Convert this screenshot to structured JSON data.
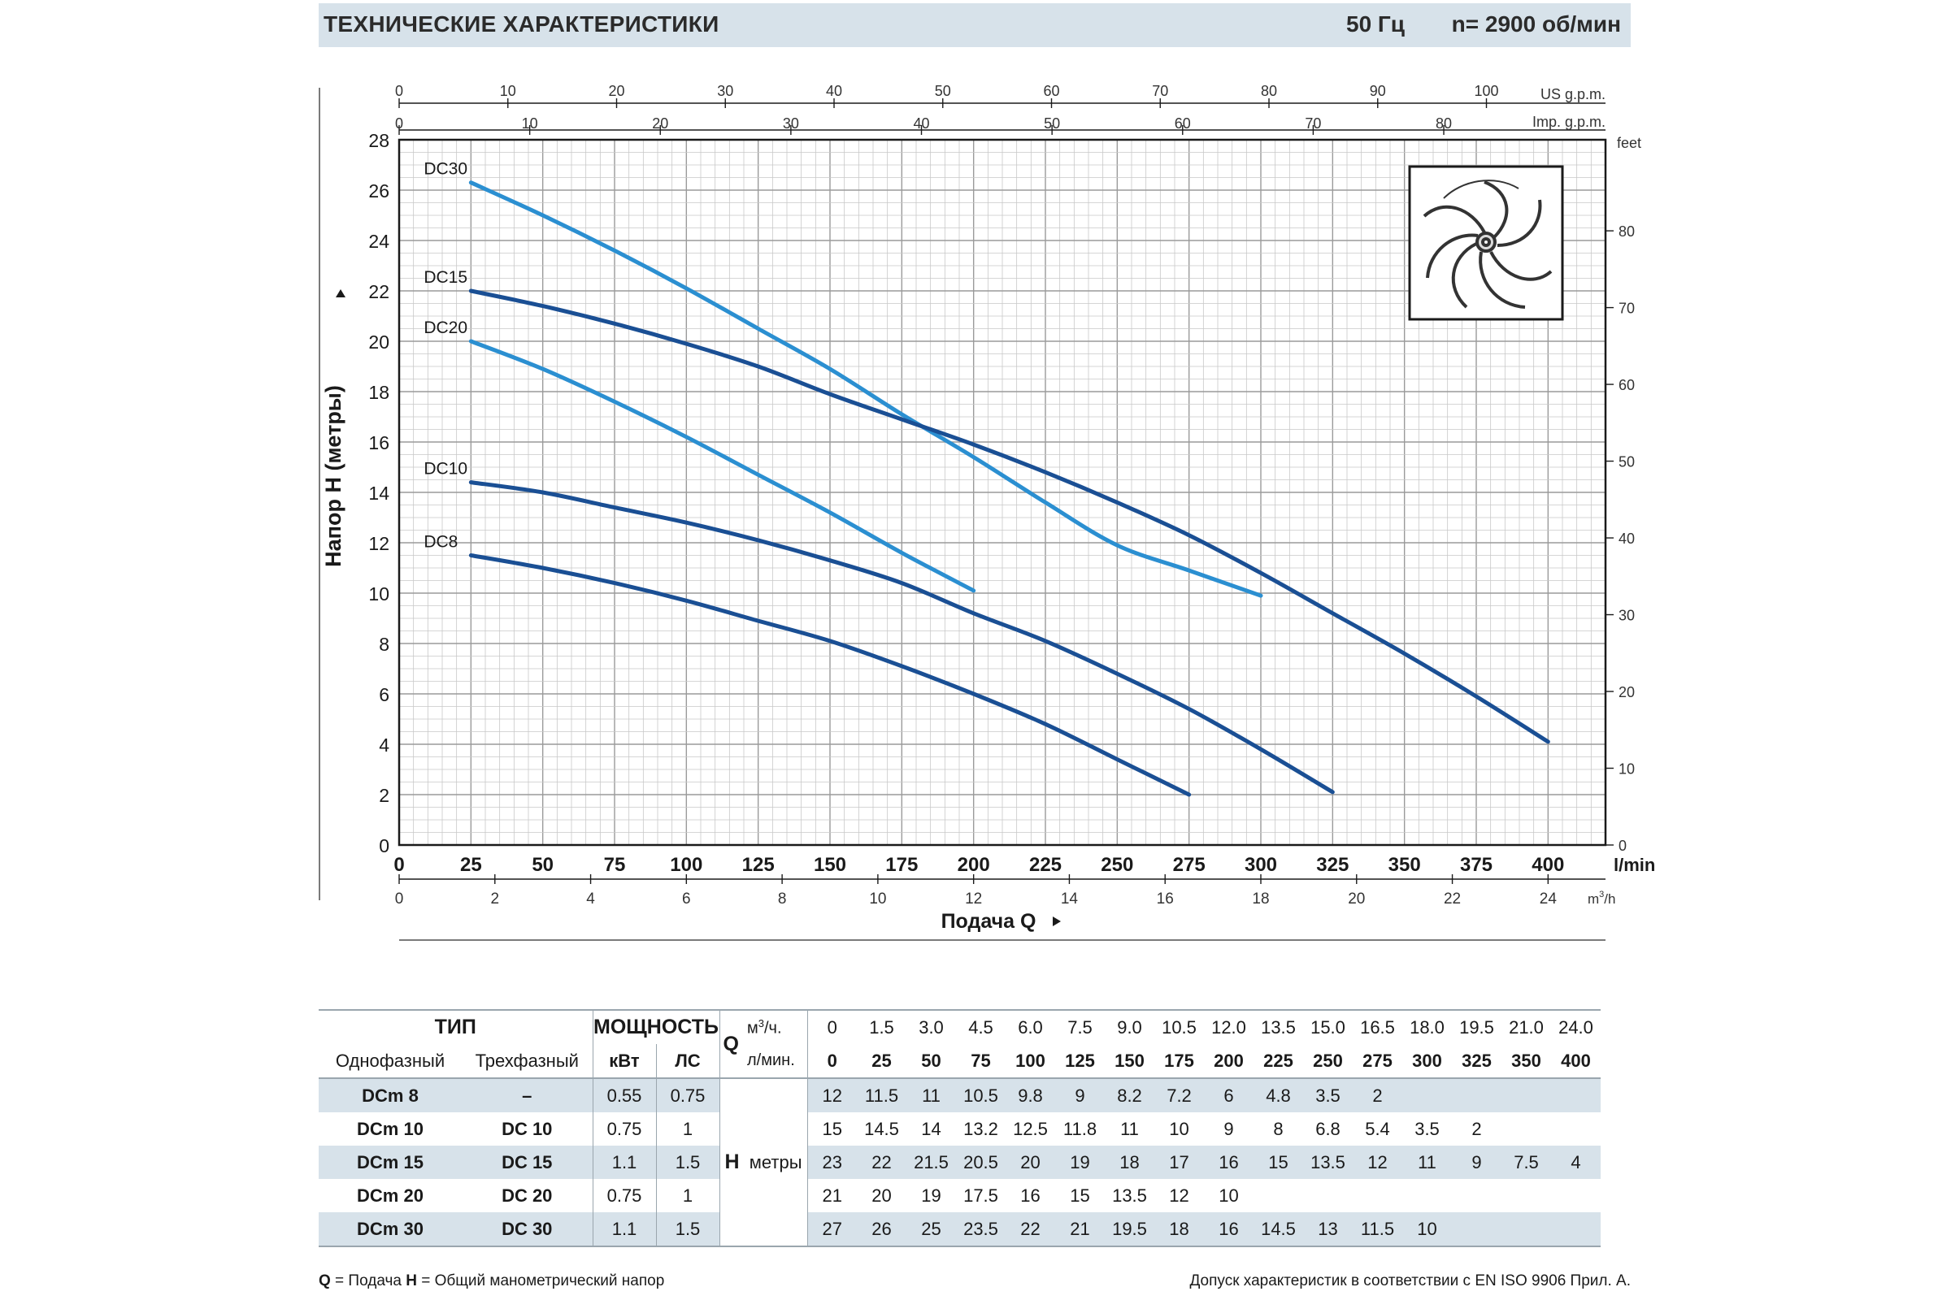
{
  "header": {
    "title": "ТЕХНИЧЕСКИЕ ХАРАКТЕРИСТИКИ",
    "frequency": "50 Гц",
    "speed": "n= 2900  об/мин"
  },
  "chart_data": {
    "type": "line",
    "x_label": "Подача Q",
    "y_label": "Напор H (метры)",
    "x_unit": "l/min",
    "xlim": [
      0,
      420
    ],
    "ylim": [
      0,
      28
    ],
    "x_ticks": [
      0,
      25,
      50,
      75,
      100,
      125,
      150,
      175,
      200,
      225,
      250,
      275,
      300,
      325,
      350,
      375,
      400
    ],
    "y_ticks": [
      0,
      2,
      4,
      6,
      8,
      10,
      12,
      14,
      16,
      18,
      20,
      22,
      24,
      26,
      28
    ],
    "grid": true,
    "secondary_axes": {
      "us_gpm": {
        "label": "US g.p.m.",
        "ticks": [
          0,
          10,
          20,
          30,
          40,
          50,
          60,
          70,
          80,
          90,
          100
        ]
      },
      "imp_gpm": {
        "label": "Imp. g.p.m.",
        "ticks": [
          0,
          10,
          20,
          30,
          40,
          50,
          60,
          70,
          80
        ]
      },
      "feet": {
        "label": "feet",
        "ticks": [
          0,
          10,
          20,
          30,
          40,
          50,
          60,
          70,
          80
        ]
      },
      "m3h": {
        "label": "m³/h",
        "ticks": [
          0,
          2,
          4,
          6,
          8,
          10,
          12,
          14,
          16,
          18,
          20,
          22,
          24
        ]
      }
    },
    "series": [
      {
        "name": "DC30",
        "color": "#2b8fd1",
        "x": [
          25,
          50,
          75,
          100,
          125,
          150,
          175,
          200,
          225,
          250,
          275,
          300
        ],
        "y": [
          26.3,
          25,
          23.6,
          22.1,
          20.5,
          18.9,
          17.1,
          15.4,
          13.6,
          11.9,
          10.9,
          9.9
        ]
      },
      {
        "name": "DC15",
        "color": "#1a4f94",
        "x": [
          25,
          50,
          75,
          100,
          125,
          150,
          175,
          200,
          225,
          250,
          275,
          300,
          325,
          350,
          375,
          400
        ],
        "y": [
          22,
          21.4,
          20.7,
          19.9,
          19,
          17.9,
          16.9,
          15.9,
          14.8,
          13.6,
          12.3,
          10.8,
          9.2,
          7.6,
          5.9,
          4.1
        ]
      },
      {
        "name": "DC20",
        "color": "#2b8fd1",
        "x": [
          25,
          50,
          75,
          100,
          125,
          150,
          175,
          200
        ],
        "y": [
          20,
          18.9,
          17.6,
          16.2,
          14.7,
          13.2,
          11.6,
          10.1
        ]
      },
      {
        "name": "DC10",
        "color": "#1a4f94",
        "x": [
          25,
          50,
          75,
          100,
          125,
          150,
          175,
          200,
          225,
          250,
          275,
          300,
          325
        ],
        "y": [
          14.4,
          14,
          13.4,
          12.8,
          12.1,
          11.3,
          10.4,
          9.2,
          8.1,
          6.8,
          5.4,
          3.8,
          2.1
        ]
      },
      {
        "name": "DC8",
        "color": "#1a4f94",
        "x": [
          25,
          50,
          75,
          100,
          125,
          150,
          175,
          200,
          225,
          250,
          275
        ],
        "y": [
          11.5,
          11,
          10.4,
          9.7,
          8.9,
          8.1,
          7.1,
          6,
          4.8,
          3.4,
          2
        ]
      }
    ]
  },
  "table": {
    "col_type": "ТИП",
    "col_power": "МОЩНОСТЬ",
    "q_symbol": "Q",
    "q_unit_m3": "м³/ч.",
    "q_unit_lmin": "л/мин.",
    "single_phase": "Однофазный",
    "three_phase": "Трехфазный",
    "kw": "кВт",
    "hp": "ЛС",
    "h_symbol": "H",
    "h_unit": "метры",
    "q_m3h": [
      "0",
      "1.5",
      "3.0",
      "4.5",
      "6.0",
      "7.5",
      "9.0",
      "10.5",
      "12.0",
      "13.5",
      "15.0",
      "16.5",
      "18.0",
      "19.5",
      "21.0",
      "24.0"
    ],
    "q_lmin": [
      "0",
      "25",
      "50",
      "75",
      "100",
      "125",
      "150",
      "175",
      "200",
      "225",
      "250",
      "275",
      "300",
      "325",
      "350",
      "400"
    ],
    "rows": [
      {
        "single": "DCm 8",
        "three": "–",
        "kw": "0.55",
        "hp": "0.75",
        "h": [
          "12",
          "11.5",
          "11",
          "10.5",
          "9.8",
          "9",
          "8.2",
          "7.2",
          "6",
          "4.8",
          "3.5",
          "2",
          "",
          "",
          "",
          ""
        ]
      },
      {
        "single": "DCm 10",
        "three": "DC 10",
        "kw": "0.75",
        "hp": "1",
        "h": [
          "15",
          "14.5",
          "14",
          "13.2",
          "12.5",
          "11.8",
          "11",
          "10",
          "9",
          "8",
          "6.8",
          "5.4",
          "3.5",
          "2",
          "",
          ""
        ]
      },
      {
        "single": "DCm 15",
        "three": "DC 15",
        "kw": "1.1",
        "hp": "1.5",
        "h": [
          "23",
          "22",
          "21.5",
          "20.5",
          "20",
          "19",
          "18",
          "17",
          "16",
          "15",
          "13.5",
          "12",
          "11",
          "9",
          "7.5",
          "4"
        ]
      },
      {
        "single": "DCm 20",
        "three": "DC 20",
        "kw": "0.75",
        "hp": "1",
        "h": [
          "21",
          "20",
          "19",
          "17.5",
          "16",
          "15",
          "13.5",
          "12",
          "10",
          "",
          "",
          "",
          "",
          "",
          "",
          ""
        ]
      },
      {
        "single": "DCm 30",
        "three": "DC 30",
        "kw": "1.1",
        "hp": "1.5",
        "h": [
          "27",
          "26",
          "25",
          "23.5",
          "22",
          "21",
          "19.5",
          "18",
          "16",
          "14.5",
          "13",
          "11.5",
          "10",
          "",
          "",
          ""
        ]
      }
    ]
  },
  "footer": {
    "left_q": "Q",
    "left_q_text": " = Подача  ",
    "left_h": "H",
    "left_h_text": " = Общий манометрический напор",
    "right": "Допуск характеристик в соответствии с EN ISO 9906 Прил. А."
  }
}
